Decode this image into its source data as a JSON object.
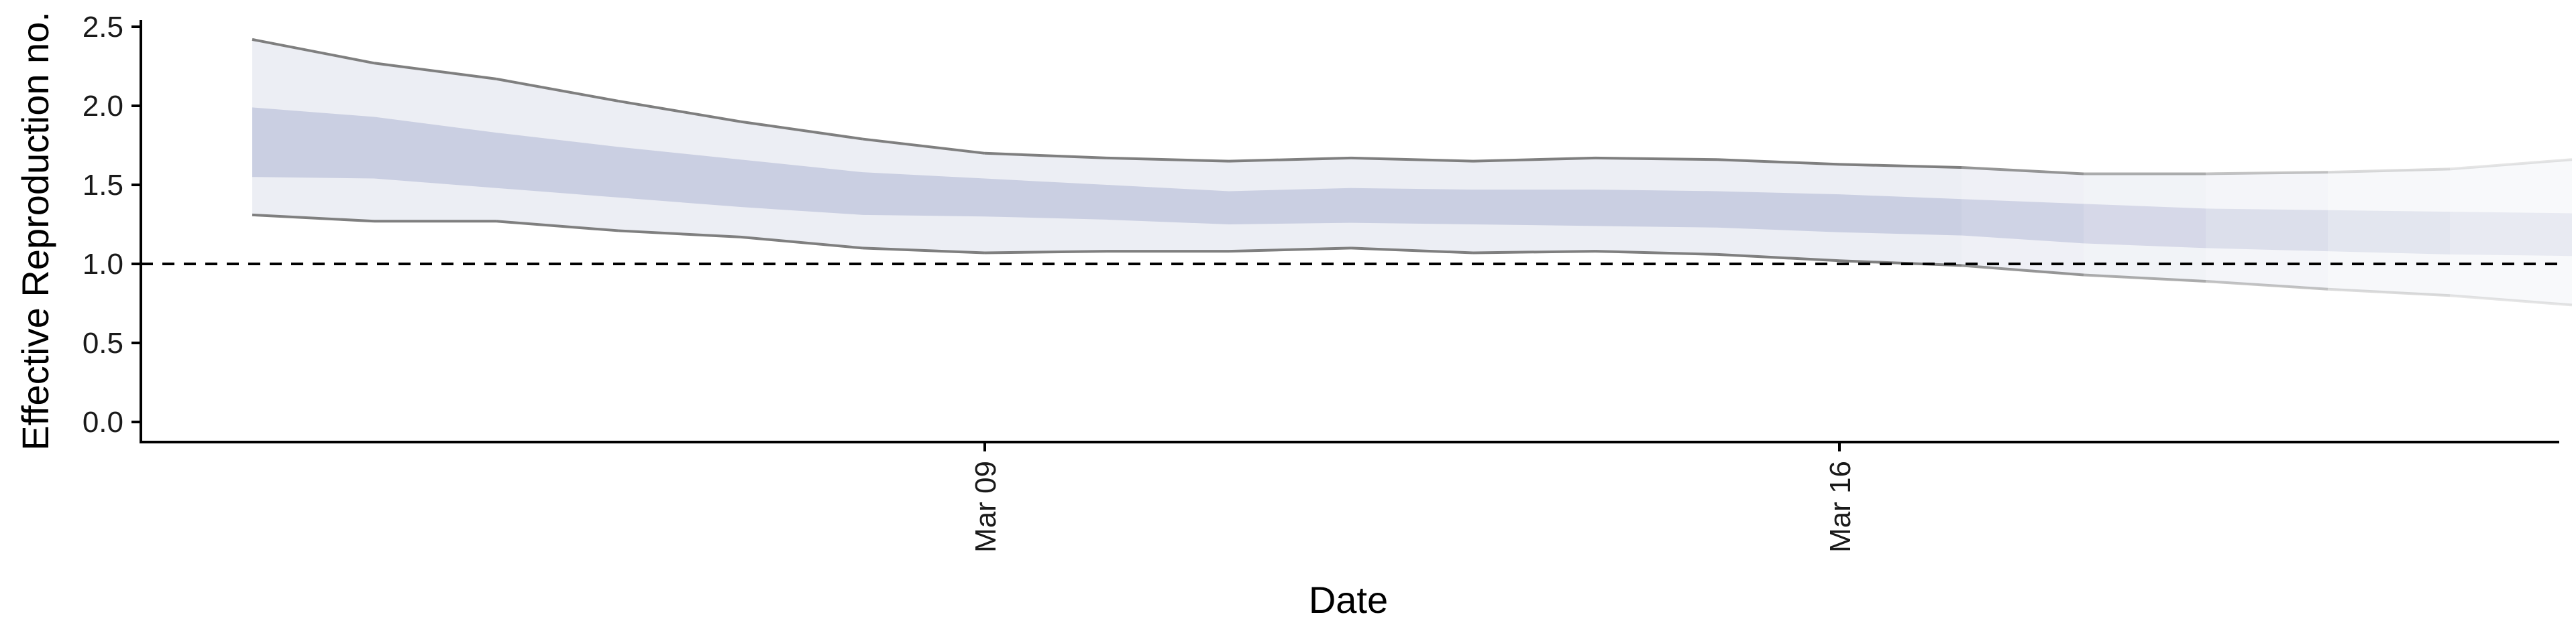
{
  "chart_data": {
    "type": "area",
    "title": "",
    "xlabel": "Date",
    "ylabel": "Effective Reproduction no.",
    "ylim": [
      0,
      2.6
    ],
    "yticks": [
      "0.0",
      "0.5",
      "1.0",
      "1.5",
      "2.0",
      "2.5"
    ],
    "x_tick_labels": [
      {
        "date": "2020-03-09",
        "label": "Mar 09"
      },
      {
        "date": "2020-03-16",
        "label": "Mar 16"
      }
    ],
    "reference_line": {
      "y": 1.0,
      "style": "dashed"
    },
    "grid": false,
    "legend": "none",
    "colors": {
      "outer_band": "#eceef4",
      "inner_band": "#c8cce0",
      "outer_line": "#7f7f7f",
      "axis": "#000000"
    },
    "x": [
      "2020-03-03",
      "2020-03-04",
      "2020-03-05",
      "2020-03-06",
      "2020-03-07",
      "2020-03-08",
      "2020-03-09",
      "2020-03-10",
      "2020-03-11",
      "2020-03-12",
      "2020-03-13",
      "2020-03-14",
      "2020-03-15",
      "2020-03-16",
      "2020-03-17",
      "2020-03-18",
      "2020-03-19",
      "2020-03-20",
      "2020-03-21",
      "2020-03-22"
    ],
    "series": [
      {
        "values": [
          2.42,
          2.27,
          2.17,
          2.03,
          1.9,
          1.79,
          1.7,
          1.67,
          1.65,
          1.67,
          1.65,
          1.67,
          1.66,
          1.63,
          1.61,
          1.57,
          1.57,
          1.58,
          1.6,
          1.66
        ]
      },
      {
        "values": [
          1.31,
          1.27,
          1.27,
          1.21,
          1.17,
          1.1,
          1.07,
          1.08,
          1.08,
          1.1,
          1.07,
          1.08,
          1.06,
          1.02,
          0.99,
          0.93,
          0.89,
          0.84,
          0.8,
          0.74
        ]
      },
      {
        "values": [
          1.99,
          1.93,
          1.83,
          1.74,
          1.66,
          1.58,
          1.54,
          1.5,
          1.46,
          1.48,
          1.47,
          1.47,
          1.46,
          1.44,
          1.41,
          1.38,
          1.35,
          1.34,
          1.33,
          1.32
        ]
      },
      {
        "values": [
          1.55,
          1.54,
          1.48,
          1.42,
          1.36,
          1.31,
          1.3,
          1.28,
          1.25,
          1.26,
          1.25,
          1.24,
          1.23,
          1.2,
          1.18,
          1.13,
          1.1,
          1.08,
          1.06,
          1.05
        ]
      }
    ],
    "projection_start": "2020-03-17"
  }
}
